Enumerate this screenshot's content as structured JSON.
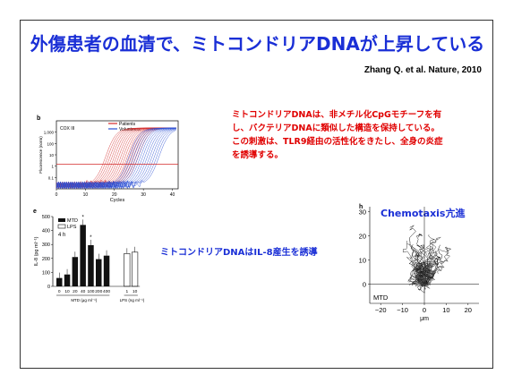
{
  "slide": {
    "title": "外傷患者の血清で、ミトコンドリアDNAが上昇している",
    "citation": "Zhang Q. et al. Nature, 2010",
    "red_text": "ミトコンドリアDNAは、非メチル化CpGモチーフを有し、バクテリアDNAに類似した構造を保持している。この刺激は、TLR9経由の活性化をきたし、全身の炎症を誘導する。",
    "blue_caption": "ミトコンドリアDNAはIL-8産生を誘導",
    "chemotaxis_title": "Chemotaxis亢進"
  },
  "colors": {
    "title_blue": "#1a2fd6",
    "red": "#e00000",
    "patients": "#d42a2a",
    "volunteers": "#2a4fd4"
  },
  "chart_data": [
    {
      "type": "line",
      "panel": "b",
      "annotation": "COX III",
      "xlabel": "Cycles",
      "ylabel": "Fluorescence (norm)",
      "xticks": [
        0,
        10,
        20,
        30,
        40
      ],
      "yticks": [
        "0.1",
        "1",
        "10",
        "100",
        "1,000"
      ],
      "legend": [
        "Patients",
        "Volunteers"
      ],
      "threshold": 20
    },
    {
      "type": "bar",
      "panel": "e",
      "ylabel": "IL-8 (pg ml⁻¹)",
      "ylim": [
        0,
        500
      ],
      "yticks": [
        0,
        100,
        200,
        300,
        400,
        500
      ],
      "time_label": "4 h",
      "legend": [
        "MTD",
        "LPS"
      ],
      "groups": [
        {
          "name": "MTD (μg ml⁻¹)",
          "categories": [
            "0",
            "10",
            "20",
            "40",
            "100",
            "200",
            "400"
          ],
          "values": [
            60,
            85,
            210,
            440,
            295,
            195,
            220
          ],
          "stars": [
            false,
            false,
            false,
            true,
            true,
            false,
            false
          ]
        },
        {
          "name": "LPS (ng ml⁻¹)",
          "categories": [
            "1",
            "10"
          ],
          "values": [
            235,
            245
          ]
        }
      ]
    },
    {
      "type": "scatter",
      "panel": "h",
      "xlabel": "μm",
      "label": "MTD",
      "xticks": [
        -20,
        -10,
        0,
        10,
        20
      ],
      "yticks": [
        0,
        10,
        20,
        30
      ]
    }
  ]
}
